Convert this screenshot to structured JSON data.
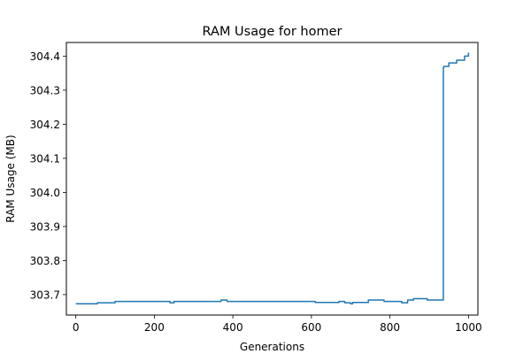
{
  "chart_data": {
    "type": "line",
    "title": "RAM Usage for homer",
    "xlabel": "Generations",
    "ylabel": "RAM Usage (MB)",
    "xlim": [
      -24,
      1024
    ],
    "ylim": [
      303.64,
      304.44
    ],
    "xticks": [
      0,
      200,
      400,
      600,
      800,
      1000
    ],
    "yticks": [
      303.7,
      303.8,
      303.9,
      304.0,
      304.1,
      304.2,
      304.3,
      304.4
    ],
    "ytick_labels": [
      "303.7",
      "303.8",
      "303.9",
      "304.0",
      "304.1",
      "304.2",
      "304.3",
      "304.4"
    ],
    "grid": false,
    "series": [
      {
        "color": "#1f77b4",
        "step": true,
        "x": [
          0,
          55,
          100,
          240,
          250,
          370,
          385,
          610,
          670,
          685,
          700,
          705,
          745,
          785,
          830,
          845,
          860,
          895,
          936,
          937,
          950,
          970,
          990,
          1000
        ],
        "y": [
          303.673,
          303.676,
          303.68,
          303.676,
          303.68,
          303.684,
          303.68,
          303.677,
          303.68,
          303.676,
          303.673,
          303.677,
          303.684,
          303.68,
          303.676,
          303.684,
          303.688,
          303.684,
          304.365,
          304.37,
          304.38,
          304.388,
          304.4,
          304.41
        ]
      }
    ]
  }
}
